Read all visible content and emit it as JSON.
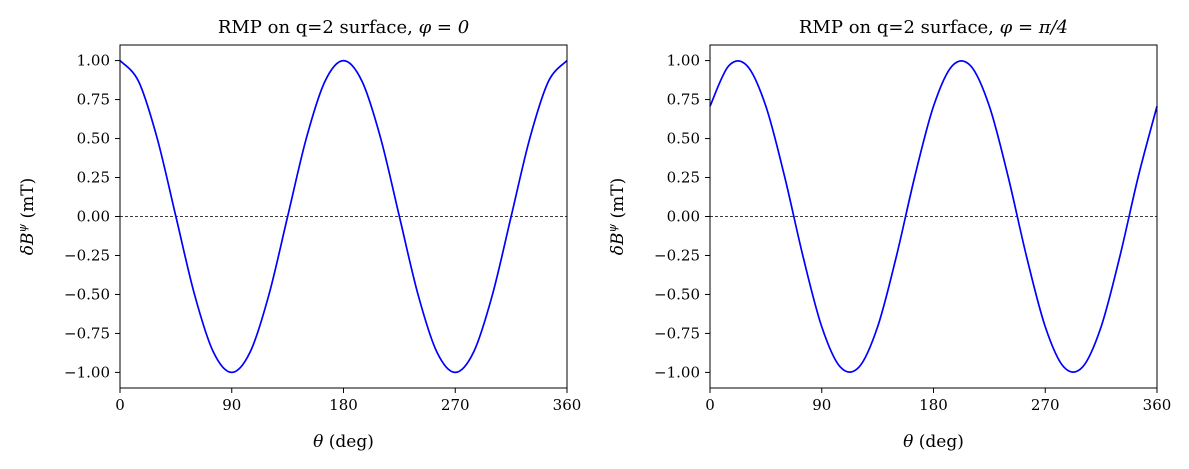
{
  "chart_data": [
    {
      "type": "line",
      "title": "RMP on q=2 surface, φ = 0",
      "title_main": "RMP on q=2 surface, ",
      "title_math": "φ = 0",
      "xlabel": "(deg)",
      "xlabel_symbol": "θ",
      "ylabel": "(mT)",
      "ylabel_symbol": "δB",
      "ylabel_superscript": "ψ",
      "xlim": [
        0,
        360
      ],
      "ylim": [
        -1.1,
        1.1
      ],
      "x_ticks": [
        0,
        90,
        180,
        270,
        360
      ],
      "x_tick_labels": [
        "0",
        "90",
        "180",
        "270",
        "360"
      ],
      "y_ticks": [
        1.0,
        0.75,
        0.5,
        0.25,
        0.0,
        -0.25,
        -0.5,
        -0.75,
        -1.0
      ],
      "y_tick_labels": [
        "1.00",
        "0.75",
        "0.50",
        "0.25",
        "0.00",
        "−0.25",
        "−0.50",
        "−0.75",
        "−1.00"
      ],
      "grid": false,
      "reference_line": {
        "y": 0,
        "style": "dashed",
        "color": "#000000"
      },
      "series": [
        {
          "color": "#0000ff",
          "x": [
            0,
            15,
            30,
            45,
            60,
            75,
            90,
            105,
            120,
            135,
            150,
            165,
            180,
            195,
            210,
            225,
            240,
            255,
            270,
            285,
            300,
            315,
            330,
            345,
            360
          ],
          "values": [
            1.0,
            0.866,
            0.5,
            0.0,
            -0.5,
            -0.866,
            -1.0,
            -0.866,
            -0.5,
            0.0,
            0.5,
            0.866,
            1.0,
            0.866,
            0.5,
            0.0,
            -0.5,
            -0.866,
            -1.0,
            -0.866,
            -0.5,
            0.0,
            0.5,
            0.866,
            1.0
          ]
        }
      ]
    },
    {
      "type": "line",
      "title": "RMP on q=2 surface, φ = π/4",
      "title_main": "RMP on q=2 surface, ",
      "title_math": "φ = π/4",
      "xlabel": "(deg)",
      "xlabel_symbol": "θ",
      "ylabel": "(mT)",
      "ylabel_symbol": "δB",
      "ylabel_superscript": "ψ",
      "xlim": [
        0,
        360
      ],
      "ylim": [
        -1.1,
        1.1
      ],
      "x_ticks": [
        0,
        90,
        180,
        270,
        360
      ],
      "x_tick_labels": [
        "0",
        "90",
        "180",
        "270",
        "360"
      ],
      "y_ticks": [
        1.0,
        0.75,
        0.5,
        0.25,
        0.0,
        -0.25,
        -0.5,
        -0.75,
        -1.0
      ],
      "y_tick_labels": [
        "1.00",
        "0.75",
        "0.50",
        "0.25",
        "0.00",
        "−0.25",
        "−0.50",
        "−0.75",
        "−1.00"
      ],
      "grid": false,
      "reference_line": {
        "y": 0,
        "style": "dashed",
        "color": "#000000"
      },
      "series": [
        {
          "color": "#0000ff",
          "x": [
            0,
            15,
            30,
            45,
            60,
            75,
            90,
            105,
            120,
            135,
            150,
            165,
            180,
            195,
            210,
            225,
            240,
            255,
            270,
            285,
            300,
            315,
            330,
            345,
            360
          ],
          "values": [
            0.707,
            0.966,
            0.966,
            0.707,
            0.259,
            -0.259,
            -0.707,
            -0.966,
            -0.966,
            -0.707,
            -0.259,
            0.259,
            0.707,
            0.966,
            0.966,
            0.707,
            0.259,
            -0.259,
            -0.707,
            -0.966,
            -0.966,
            -0.707,
            -0.259,
            0.259,
            0.707
          ]
        }
      ]
    }
  ]
}
